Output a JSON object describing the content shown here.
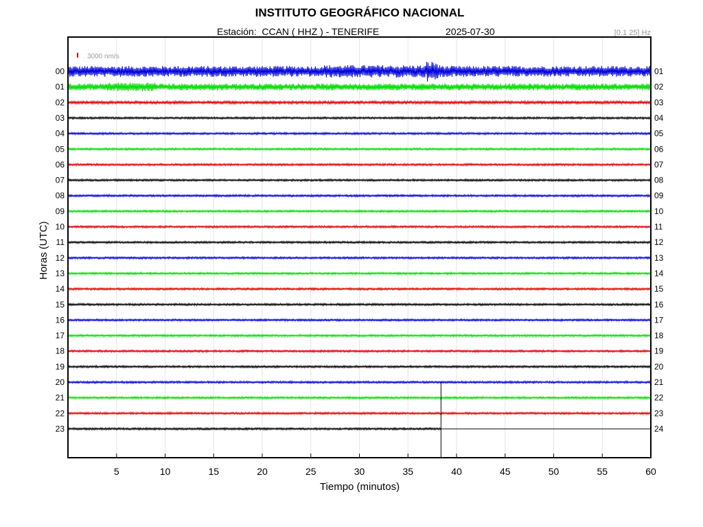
{
  "header": {
    "title": "INSTITUTO GEOGRÁFICO NACIONAL",
    "station": "Estación:  CCAN ( HHZ ) - TENERIFE",
    "date": "2025-07-30",
    "filter": "[0.1 25] Hz"
  },
  "chart_data": {
    "type": "line",
    "title": "INSTITUTO GEOGRÁFICO NACIONAL",
    "subtitle": "Estación:  CCAN ( HHZ ) - TENERIFE    2025-07-30",
    "xlabel": "Tiempo (minutos)",
    "ylabel": "Horas (UTC)",
    "xlim": [
      0,
      60
    ],
    "x_ticks": [
      5,
      10,
      15,
      20,
      25,
      30,
      35,
      40,
      45,
      50,
      55,
      60
    ],
    "left_labels": [
      "00",
      "01",
      "02",
      "03",
      "04",
      "05",
      "06",
      "07",
      "08",
      "09",
      "10",
      "11",
      "12",
      "13",
      "14",
      "15",
      "16",
      "17",
      "18",
      "19",
      "20",
      "21",
      "22",
      "23"
    ],
    "right_labels": [
      "01",
      "02",
      "03",
      "04",
      "05",
      "06",
      "07",
      "08",
      "09",
      "10",
      "11",
      "12",
      "13",
      "14",
      "15",
      "16",
      "17",
      "18",
      "19",
      "20",
      "21",
      "22",
      "23",
      "24"
    ],
    "scale_label": "3000 nm/s",
    "trace_colors": [
      "#0000dd",
      "#00dd00",
      "#dd0000",
      "#000000"
    ],
    "grid": true,
    "recording_end_minute": 38.4,
    "series": [
      {
        "hour": "00",
        "color": "#0000dd",
        "relative_amplitude": 8,
        "notable_burst_minute": 37.5
      },
      {
        "hour": "01",
        "color": "#00dd00",
        "relative_amplitude": 5
      },
      {
        "hour": "02",
        "color": "#dd0000",
        "relative_amplitude": 2
      },
      {
        "hour": "03",
        "color": "#000000",
        "relative_amplitude": 1.5
      },
      {
        "hour": "04",
        "color": "#0000dd",
        "relative_amplitude": 1.5
      },
      {
        "hour": "05",
        "color": "#00dd00",
        "relative_amplitude": 1.5
      },
      {
        "hour": "06",
        "color": "#dd0000",
        "relative_amplitude": 1.5
      },
      {
        "hour": "07",
        "color": "#000000",
        "relative_amplitude": 1.5
      },
      {
        "hour": "08",
        "color": "#0000dd",
        "relative_amplitude": 1.5
      },
      {
        "hour": "09",
        "color": "#00dd00",
        "relative_amplitude": 1.5
      },
      {
        "hour": "10",
        "color": "#dd0000",
        "relative_amplitude": 1.5
      },
      {
        "hour": "11",
        "color": "#000000",
        "relative_amplitude": 1.5
      },
      {
        "hour": "12",
        "color": "#0000dd",
        "relative_amplitude": 1.5
      },
      {
        "hour": "13",
        "color": "#00dd00",
        "relative_amplitude": 1.5
      },
      {
        "hour": "14",
        "color": "#dd0000",
        "relative_amplitude": 1.5
      },
      {
        "hour": "15",
        "color": "#000000",
        "relative_amplitude": 1.5
      },
      {
        "hour": "16",
        "color": "#0000dd",
        "relative_amplitude": 1.5
      },
      {
        "hour": "17",
        "color": "#00dd00",
        "relative_amplitude": 1.5
      },
      {
        "hour": "18",
        "color": "#dd0000",
        "relative_amplitude": 1.5
      },
      {
        "hour": "19",
        "color": "#000000",
        "relative_amplitude": 1.5
      },
      {
        "hour": "20",
        "color": "#0000dd",
        "relative_amplitude": 1.5
      },
      {
        "hour": "21",
        "color": "#00dd00",
        "relative_amplitude": 1.5
      },
      {
        "hour": "22",
        "color": "#dd0000",
        "relative_amplitude": 1.5
      },
      {
        "hour": "23",
        "color": "#000000",
        "relative_amplitude": 1.5
      }
    ]
  }
}
